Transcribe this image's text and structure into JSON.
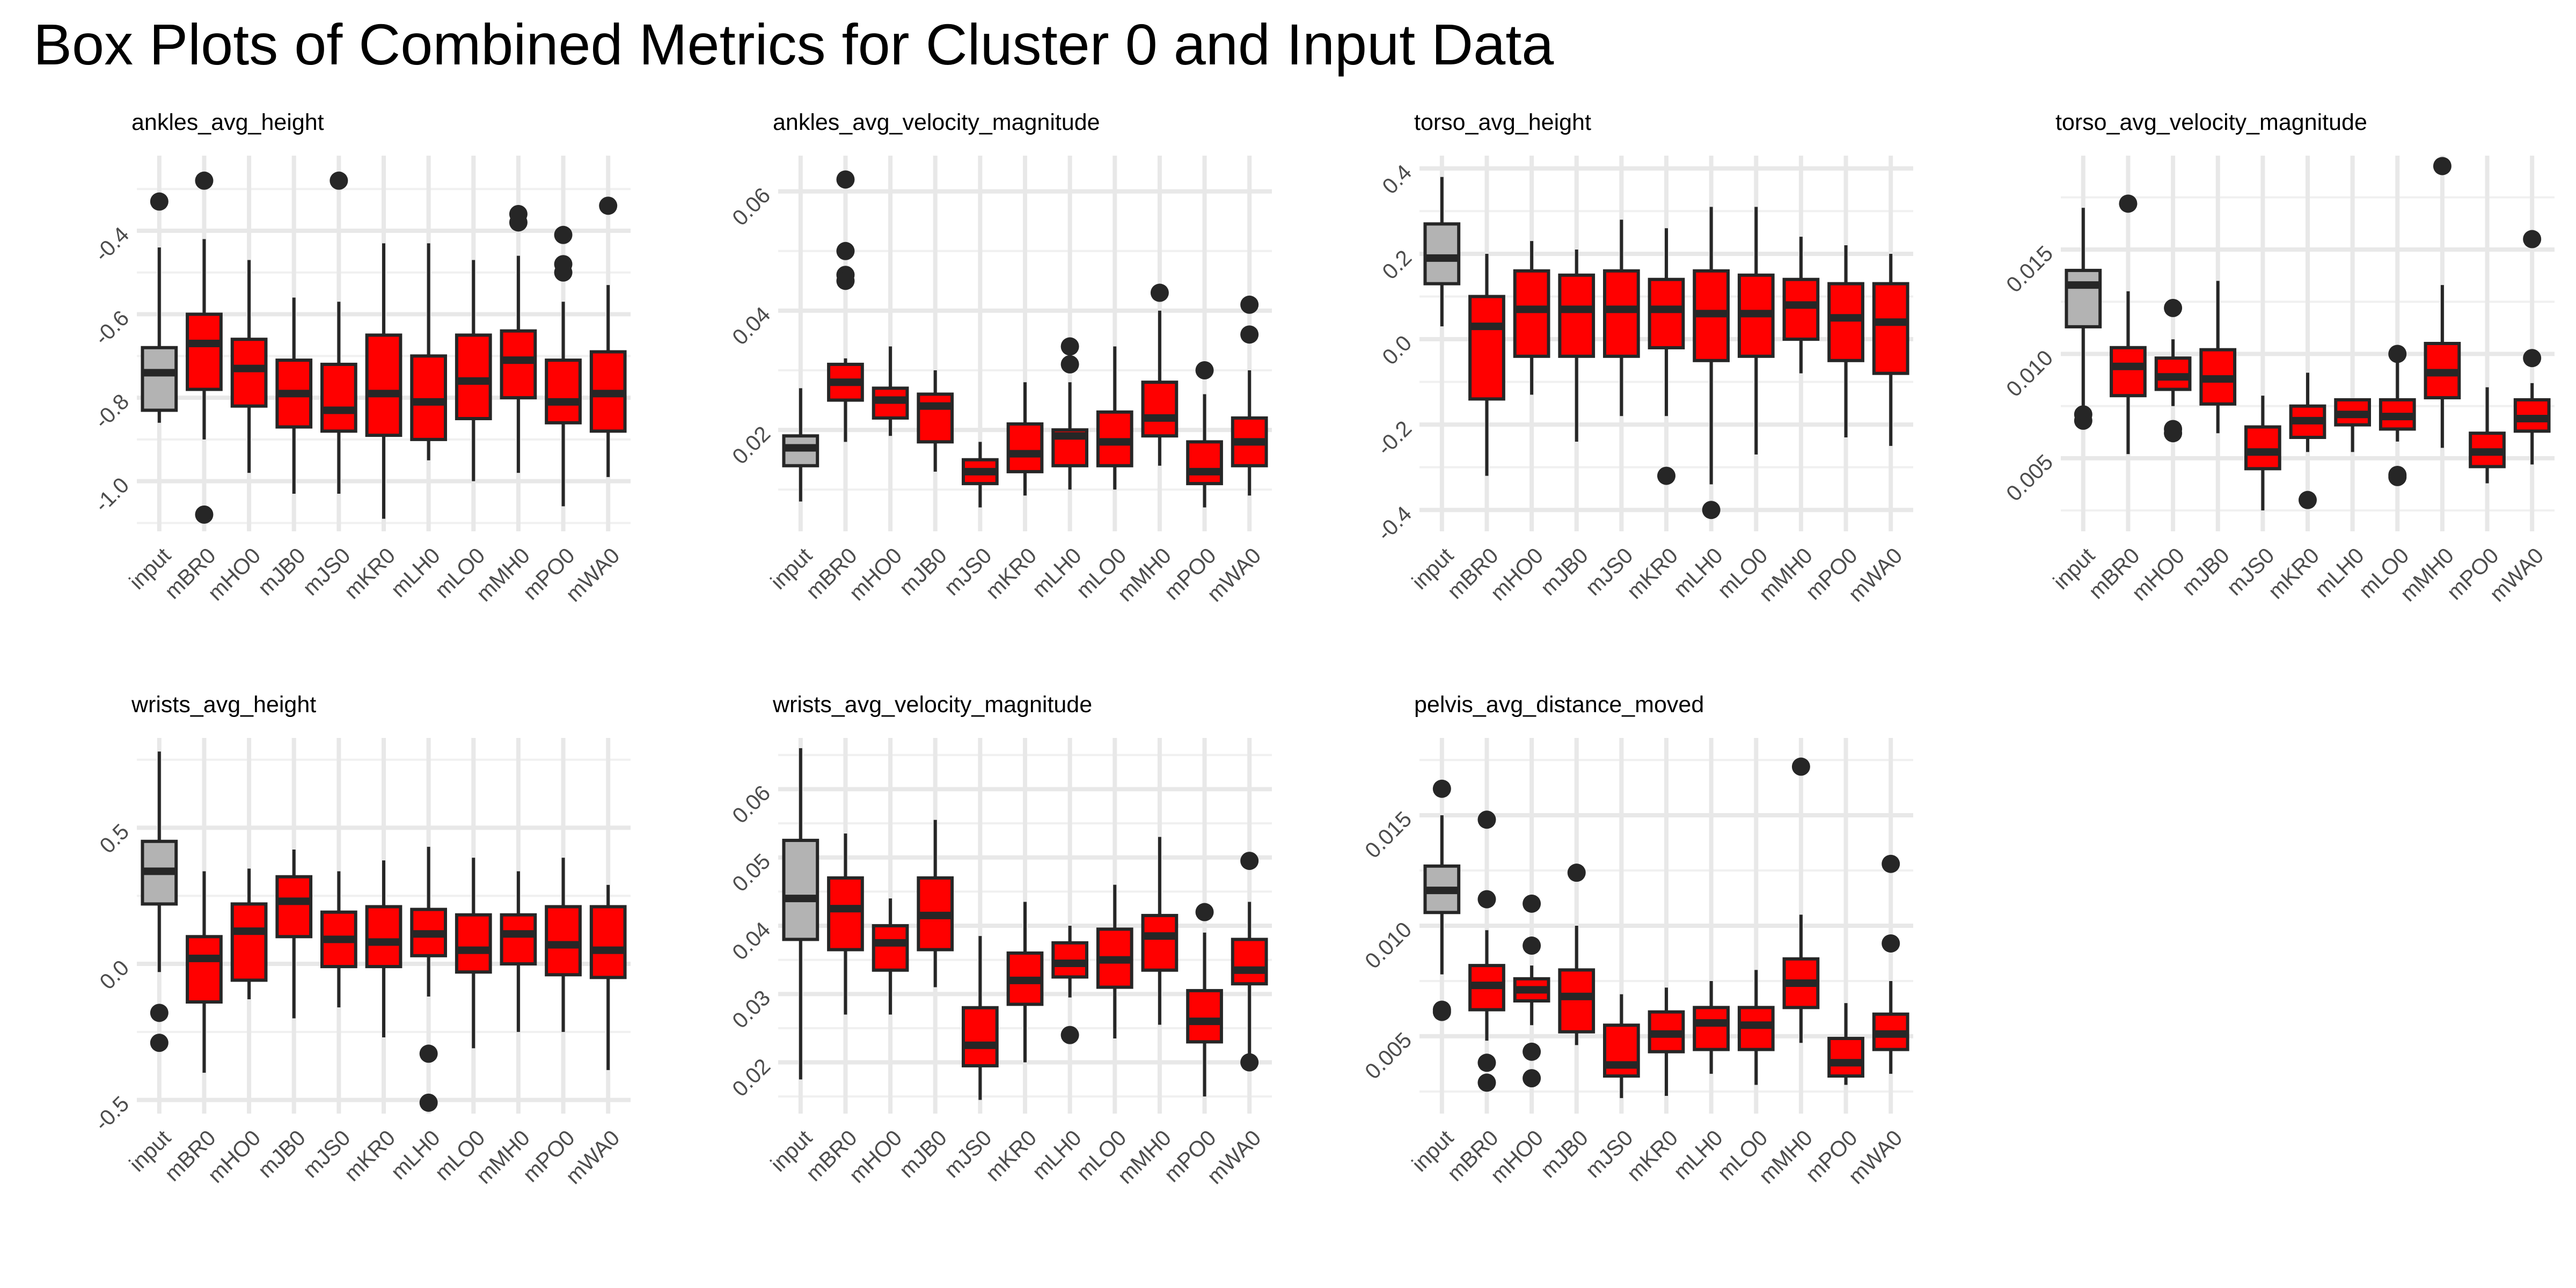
{
  "title": "Box Plots of Combined Metrics for Cluster 0 and Input Data",
  "colors": {
    "input_fill": "#b3b3b3",
    "cluster_fill": "#ff0000",
    "outline": "#262626",
    "median": "#262626",
    "outlier": "#262626"
  },
  "chart_data": [
    {
      "type": "box",
      "title": "ankles_avg_height",
      "categories": [
        "input",
        "mBR0",
        "mHO0",
        "mJB0",
        "mJS0",
        "mKR0",
        "mLH0",
        "mLO0",
        "mMH0",
        "mPO0",
        "mWA0"
      ],
      "yticks": [
        -1.0,
        -0.8,
        -0.6,
        -0.4
      ],
      "ytick_labels": [
        "-1.0",
        "-0.8",
        "-0.6",
        "-0.4"
      ],
      "ylim": [
        -1.12,
        -0.22
      ],
      "boxes": [
        {
          "min": -0.86,
          "q1": -0.83,
          "median": -0.74,
          "q3": -0.68,
          "max": -0.44,
          "outliers": [
            -0.33
          ]
        },
        {
          "min": -0.9,
          "q1": -0.78,
          "median": -0.67,
          "q3": -0.6,
          "max": -0.42,
          "outliers": [
            -0.28,
            -1.08
          ]
        },
        {
          "min": -0.98,
          "q1": -0.82,
          "median": -0.73,
          "q3": -0.66,
          "max": -0.47,
          "outliers": []
        },
        {
          "min": -1.03,
          "q1": -0.87,
          "median": -0.79,
          "q3": -0.71,
          "max": -0.56,
          "outliers": []
        },
        {
          "min": -1.03,
          "q1": -0.88,
          "median": -0.83,
          "q3": -0.72,
          "max": -0.57,
          "outliers": [
            -0.28
          ]
        },
        {
          "min": -1.09,
          "q1": -0.89,
          "median": -0.79,
          "q3": -0.65,
          "max": -0.43,
          "outliers": []
        },
        {
          "min": -0.95,
          "q1": -0.9,
          "median": -0.81,
          "q3": -0.7,
          "max": -0.43,
          "outliers": []
        },
        {
          "min": -1.0,
          "q1": -0.85,
          "median": -0.76,
          "q3": -0.65,
          "max": -0.47,
          "outliers": []
        },
        {
          "min": -0.98,
          "q1": -0.8,
          "median": -0.71,
          "q3": -0.64,
          "max": -0.46,
          "outliers": [
            -0.36,
            -0.38
          ]
        },
        {
          "min": -1.06,
          "q1": -0.86,
          "median": -0.81,
          "q3": -0.71,
          "max": -0.57,
          "outliers": [
            -0.41,
            -0.48,
            -0.5
          ]
        },
        {
          "min": -0.99,
          "q1": -0.88,
          "median": -0.79,
          "q3": -0.69,
          "max": -0.53,
          "outliers": [
            -0.34
          ]
        }
      ]
    },
    {
      "type": "box",
      "title": "ankles_avg_velocity_magnitude",
      "categories": [
        "input",
        "mBR0",
        "mHO0",
        "mJB0",
        "mJS0",
        "mKR0",
        "mLH0",
        "mLO0",
        "mMH0",
        "mPO0",
        "mWA0"
      ],
      "yticks": [
        0.02,
        0.04,
        0.06
      ],
      "ytick_labels": [
        "0.02",
        "0.04",
        "0.06"
      ],
      "ylim": [
        0.003,
        0.066
      ],
      "boxes": [
        {
          "min": 0.008,
          "q1": 0.014,
          "median": 0.017,
          "q3": 0.019,
          "max": 0.027,
          "outliers": []
        },
        {
          "min": 0.018,
          "q1": 0.025,
          "median": 0.028,
          "q3": 0.031,
          "max": 0.032,
          "outliers": [
            0.062,
            0.05,
            0.046,
            0.045
          ]
        },
        {
          "min": 0.019,
          "q1": 0.022,
          "median": 0.025,
          "q3": 0.027,
          "max": 0.034,
          "outliers": []
        },
        {
          "min": 0.013,
          "q1": 0.018,
          "median": 0.024,
          "q3": 0.026,
          "max": 0.03,
          "outliers": []
        },
        {
          "min": 0.007,
          "q1": 0.011,
          "median": 0.013,
          "q3": 0.015,
          "max": 0.018,
          "outliers": []
        },
        {
          "min": 0.009,
          "q1": 0.013,
          "median": 0.016,
          "q3": 0.021,
          "max": 0.028,
          "outliers": []
        },
        {
          "min": 0.01,
          "q1": 0.014,
          "median": 0.019,
          "q3": 0.02,
          "max": 0.028,
          "outliers": [
            0.031,
            0.034
          ]
        },
        {
          "min": 0.01,
          "q1": 0.014,
          "median": 0.018,
          "q3": 0.023,
          "max": 0.034,
          "outliers": []
        },
        {
          "min": 0.014,
          "q1": 0.019,
          "median": 0.022,
          "q3": 0.028,
          "max": 0.04,
          "outliers": [
            0.043
          ]
        },
        {
          "min": 0.007,
          "q1": 0.011,
          "median": 0.013,
          "q3": 0.018,
          "max": 0.026,
          "outliers": [
            0.03
          ]
        },
        {
          "min": 0.009,
          "q1": 0.014,
          "median": 0.018,
          "q3": 0.022,
          "max": 0.03,
          "outliers": [
            0.041,
            0.036
          ]
        }
      ]
    },
    {
      "type": "box",
      "title": "torso_avg_height",
      "categories": [
        "input",
        "mBR0",
        "mHO0",
        "mJB0",
        "mJS0",
        "mKR0",
        "mLH0",
        "mLO0",
        "mMH0",
        "mPO0",
        "mWA0"
      ],
      "yticks": [
        -0.4,
        -0.2,
        0.0,
        0.2,
        0.4
      ],
      "ytick_labels": [
        "-0.4",
        "-0.2",
        "0.0",
        "0.2",
        "0.4"
      ],
      "ylim": [
        -0.45,
        0.43
      ],
      "boxes": [
        {
          "min": 0.03,
          "q1": 0.13,
          "median": 0.19,
          "q3": 0.27,
          "max": 0.38,
          "outliers": []
        },
        {
          "min": -0.32,
          "q1": -0.14,
          "median": 0.03,
          "q3": 0.1,
          "max": 0.2,
          "outliers": []
        },
        {
          "min": -0.13,
          "q1": -0.04,
          "median": 0.07,
          "q3": 0.16,
          "max": 0.23,
          "outliers": []
        },
        {
          "min": -0.24,
          "q1": -0.04,
          "median": 0.07,
          "q3": 0.15,
          "max": 0.21,
          "outliers": []
        },
        {
          "min": -0.18,
          "q1": -0.04,
          "median": 0.07,
          "q3": 0.16,
          "max": 0.28,
          "outliers": []
        },
        {
          "min": -0.18,
          "q1": -0.02,
          "median": 0.07,
          "q3": 0.14,
          "max": 0.26,
          "outliers": [
            -0.32
          ]
        },
        {
          "min": -0.34,
          "q1": -0.05,
          "median": 0.06,
          "q3": 0.16,
          "max": 0.31,
          "outliers": [
            -0.4
          ]
        },
        {
          "min": -0.27,
          "q1": -0.04,
          "median": 0.06,
          "q3": 0.15,
          "max": 0.31,
          "outliers": []
        },
        {
          "min": -0.08,
          "q1": 0.0,
          "median": 0.08,
          "q3": 0.14,
          "max": 0.24,
          "outliers": []
        },
        {
          "min": -0.23,
          "q1": -0.05,
          "median": 0.05,
          "q3": 0.13,
          "max": 0.22,
          "outliers": []
        },
        {
          "min": -0.25,
          "q1": -0.08,
          "median": 0.04,
          "q3": 0.13,
          "max": 0.2,
          "outliers": []
        }
      ]
    },
    {
      "type": "box",
      "title": "torso_avg_velocity_magnitude",
      "categories": [
        "input",
        "mBR0",
        "mHO0",
        "mJB0",
        "mJS0",
        "mKR0",
        "mLH0",
        "mLO0",
        "mMH0",
        "mPO0",
        "mWA0"
      ],
      "yticks": [
        0.005,
        0.01,
        0.015
      ],
      "ytick_labels": [
        "0.005",
        "0.010",
        "0.015"
      ],
      "ylim": [
        0.0015,
        0.0195
      ],
      "boxes": [
        {
          "min": 0.0075,
          "q1": 0.0113,
          "median": 0.0133,
          "q3": 0.014,
          "max": 0.017,
          "outliers": [
            0.0068,
            0.0071
          ]
        },
        {
          "min": 0.0052,
          "q1": 0.008,
          "median": 0.0094,
          "q3": 0.0103,
          "max": 0.013,
          "outliers": [
            0.0172
          ]
        },
        {
          "min": 0.0075,
          "q1": 0.0083,
          "median": 0.0089,
          "q3": 0.0098,
          "max": 0.0107,
          "outliers": [
            0.0064,
            0.0062,
            0.0122
          ]
        },
        {
          "min": 0.0062,
          "q1": 0.0076,
          "median": 0.0088,
          "q3": 0.0102,
          "max": 0.0135,
          "outliers": []
        },
        {
          "min": 0.0025,
          "q1": 0.0045,
          "median": 0.0053,
          "q3": 0.0065,
          "max": 0.008,
          "outliers": []
        },
        {
          "min": 0.0053,
          "q1": 0.006,
          "median": 0.0068,
          "q3": 0.0075,
          "max": 0.0091,
          "outliers": [
            0.003
          ]
        },
        {
          "min": 0.0053,
          "q1": 0.0066,
          "median": 0.0071,
          "q3": 0.0078,
          "max": 0.0078,
          "outliers": []
        },
        {
          "min": 0.0058,
          "q1": 0.0064,
          "median": 0.007,
          "q3": 0.0078,
          "max": 0.0098,
          "outliers": [
            0.01,
            0.0042,
            0.0041
          ]
        },
        {
          "min": 0.0055,
          "q1": 0.0079,
          "median": 0.0091,
          "q3": 0.0105,
          "max": 0.0133,
          "outliers": [
            0.019
          ]
        },
        {
          "min": 0.0038,
          "q1": 0.0046,
          "median": 0.0053,
          "q3": 0.0062,
          "max": 0.0084,
          "outliers": []
        },
        {
          "min": 0.0047,
          "q1": 0.0063,
          "median": 0.0069,
          "q3": 0.0078,
          "max": 0.0086,
          "outliers": [
            0.0098,
            0.0155
          ]
        }
      ]
    },
    {
      "type": "box",
      "title": "wrists_avg_height",
      "categories": [
        "input",
        "mBR0",
        "mHO0",
        "mJB0",
        "mJS0",
        "mKR0",
        "mLH0",
        "mLO0",
        "mMH0",
        "mPO0",
        "mWA0"
      ],
      "yticks": [
        -0.5,
        0.0,
        0.5
      ],
      "ytick_labels": [
        "-0.5",
        "0.0",
        "0.5"
      ],
      "ylim": [
        -0.55,
        0.83
      ],
      "boxes": [
        {
          "min": -0.03,
          "q1": 0.22,
          "median": 0.34,
          "q3": 0.45,
          "max": 0.78,
          "outliers": [
            -0.18,
            -0.29
          ]
        },
        {
          "min": -0.4,
          "q1": -0.14,
          "median": 0.02,
          "q3": 0.1,
          "max": 0.34,
          "outliers": []
        },
        {
          "min": -0.13,
          "q1": -0.06,
          "median": 0.12,
          "q3": 0.22,
          "max": 0.35,
          "outliers": []
        },
        {
          "min": -0.2,
          "q1": 0.1,
          "median": 0.23,
          "q3": 0.32,
          "max": 0.42,
          "outliers": []
        },
        {
          "min": -0.16,
          "q1": -0.01,
          "median": 0.09,
          "q3": 0.19,
          "max": 0.34,
          "outliers": []
        },
        {
          "min": -0.27,
          "q1": -0.01,
          "median": 0.08,
          "q3": 0.21,
          "max": 0.38,
          "outliers": []
        },
        {
          "min": -0.12,
          "q1": 0.03,
          "median": 0.11,
          "q3": 0.2,
          "max": 0.43,
          "outliers": [
            -0.33,
            -0.51
          ]
        },
        {
          "min": -0.31,
          "q1": -0.03,
          "median": 0.05,
          "q3": 0.18,
          "max": 0.39,
          "outliers": []
        },
        {
          "min": -0.25,
          "q1": 0.0,
          "median": 0.11,
          "q3": 0.18,
          "max": 0.34,
          "outliers": []
        },
        {
          "min": -0.25,
          "q1": -0.04,
          "median": 0.07,
          "q3": 0.21,
          "max": 0.39,
          "outliers": []
        },
        {
          "min": -0.39,
          "q1": -0.05,
          "median": 0.05,
          "q3": 0.21,
          "max": 0.29,
          "outliers": []
        }
      ]
    },
    {
      "type": "box",
      "title": "wrists_avg_velocity_magnitude",
      "categories": [
        "input",
        "mBR0",
        "mHO0",
        "mJB0",
        "mJS0",
        "mKR0",
        "mLH0",
        "mLO0",
        "mMH0",
        "mPO0",
        "mWA0"
      ],
      "yticks": [
        0.02,
        0.03,
        0.04,
        0.05,
        0.06
      ],
      "ytick_labels": [
        "0.02",
        "0.03",
        "0.04",
        "0.05",
        "0.06"
      ],
      "ylim": [
        0.0125,
        0.0675
      ],
      "boxes": [
        {
          "min": 0.0175,
          "q1": 0.038,
          "median": 0.044,
          "q3": 0.0525,
          "max": 0.066,
          "outliers": []
        },
        {
          "min": 0.027,
          "q1": 0.0365,
          "median": 0.0425,
          "q3": 0.047,
          "max": 0.0535,
          "outliers": []
        },
        {
          "min": 0.027,
          "q1": 0.0335,
          "median": 0.0375,
          "q3": 0.04,
          "max": 0.044,
          "outliers": []
        },
        {
          "min": 0.031,
          "q1": 0.0365,
          "median": 0.0415,
          "q3": 0.047,
          "max": 0.0555,
          "outliers": []
        },
        {
          "min": 0.0145,
          "q1": 0.0195,
          "median": 0.0225,
          "q3": 0.028,
          "max": 0.0385,
          "outliers": []
        },
        {
          "min": 0.02,
          "q1": 0.0285,
          "median": 0.032,
          "q3": 0.036,
          "max": 0.0435,
          "outliers": []
        },
        {
          "min": 0.0295,
          "q1": 0.0325,
          "median": 0.0345,
          "q3": 0.0375,
          "max": 0.04,
          "outliers": [
            0.024
          ]
        },
        {
          "min": 0.0235,
          "q1": 0.031,
          "median": 0.035,
          "q3": 0.0395,
          "max": 0.046,
          "outliers": []
        },
        {
          "min": 0.0255,
          "q1": 0.0335,
          "median": 0.0385,
          "q3": 0.0415,
          "max": 0.053,
          "outliers": []
        },
        {
          "min": 0.015,
          "q1": 0.023,
          "median": 0.026,
          "q3": 0.0305,
          "max": 0.039,
          "outliers": [
            0.042
          ]
        },
        {
          "min": 0.02,
          "q1": 0.0315,
          "median": 0.0335,
          "q3": 0.038,
          "max": 0.0435,
          "outliers": [
            0.0495,
            0.02
          ]
        }
      ]
    },
    {
      "type": "box",
      "title": "pelvis_avg_distance_moved",
      "categories": [
        "input",
        "mBR0",
        "mHO0",
        "mJB0",
        "mJS0",
        "mKR0",
        "mLH0",
        "mLO0",
        "mMH0",
        "mPO0",
        "mWA0"
      ],
      "yticks": [
        0.005,
        0.01,
        0.015
      ],
      "ytick_labels": [
        "0.005",
        "0.010",
        "0.015"
      ],
      "ylim": [
        0.0015,
        0.0185
      ],
      "boxes": [
        {
          "min": 0.0078,
          "q1": 0.0106,
          "median": 0.0116,
          "q3": 0.0127,
          "max": 0.015,
          "outliers": [
            0.0162,
            0.0062,
            0.0061
          ]
        },
        {
          "min": 0.0048,
          "q1": 0.0062,
          "median": 0.0073,
          "q3": 0.0082,
          "max": 0.0098,
          "outliers": [
            0.0148,
            0.0112,
            0.0038,
            0.0029
          ]
        },
        {
          "min": 0.0055,
          "q1": 0.0066,
          "median": 0.0071,
          "q3": 0.0076,
          "max": 0.0082,
          "outliers": [
            0.011,
            0.0091,
            0.0043,
            0.0031
          ]
        },
        {
          "min": 0.0046,
          "q1": 0.0052,
          "median": 0.0068,
          "q3": 0.008,
          "max": 0.01,
          "outliers": [
            0.0124
          ]
        },
        {
          "min": 0.0022,
          "q1": 0.0032,
          "median": 0.0037,
          "q3": 0.0055,
          "max": 0.0069,
          "outliers": []
        },
        {
          "min": 0.0023,
          "q1": 0.0043,
          "median": 0.0051,
          "q3": 0.0061,
          "max": 0.0072,
          "outliers": []
        },
        {
          "min": 0.0033,
          "q1": 0.0044,
          "median": 0.0056,
          "q3": 0.0063,
          "max": 0.0075,
          "outliers": []
        },
        {
          "min": 0.0028,
          "q1": 0.0044,
          "median": 0.0055,
          "q3": 0.0063,
          "max": 0.008,
          "outliers": []
        },
        {
          "min": 0.0047,
          "q1": 0.0063,
          "median": 0.0074,
          "q3": 0.0085,
          "max": 0.0105,
          "outliers": [
            0.0172
          ]
        },
        {
          "min": 0.0028,
          "q1": 0.0032,
          "median": 0.0038,
          "q3": 0.0049,
          "max": 0.0065,
          "outliers": []
        },
        {
          "min": 0.0033,
          "q1": 0.0044,
          "median": 0.0051,
          "q3": 0.006,
          "max": 0.0075,
          "outliers": [
            0.0128,
            0.0092
          ]
        }
      ]
    }
  ]
}
